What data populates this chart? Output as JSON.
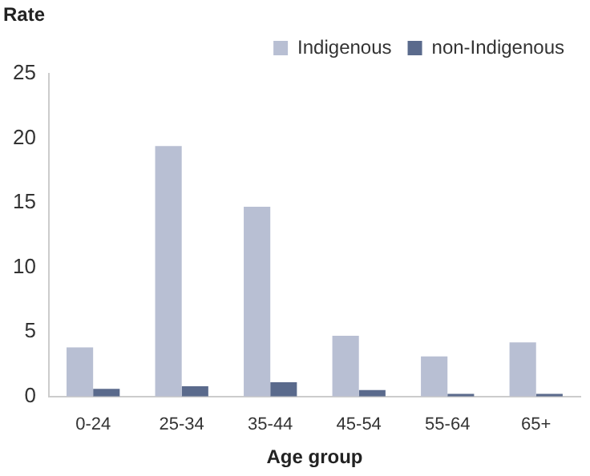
{
  "chart_data": {
    "type": "bar",
    "ylabel": "Rate",
    "xlabel": "Age group",
    "categories": [
      "0-24",
      "25-34",
      "35-44",
      "45-54",
      "55-64",
      "65+"
    ],
    "series": [
      {
        "name": "Indigenous",
        "color": "#b8bfd3",
        "values": [
          3.8,
          19.4,
          14.7,
          4.7,
          3.1,
          4.2
        ]
      },
      {
        "name": "non-Indigenous",
        "color": "#5a6a8c",
        "values": [
          0.6,
          0.8,
          1.1,
          0.5,
          0.2,
          0.2
        ]
      }
    ],
    "ylim": [
      0,
      25
    ],
    "yticks": [
      0,
      5,
      10,
      15,
      20,
      25
    ],
    "grid": false,
    "legend": "top right"
  }
}
